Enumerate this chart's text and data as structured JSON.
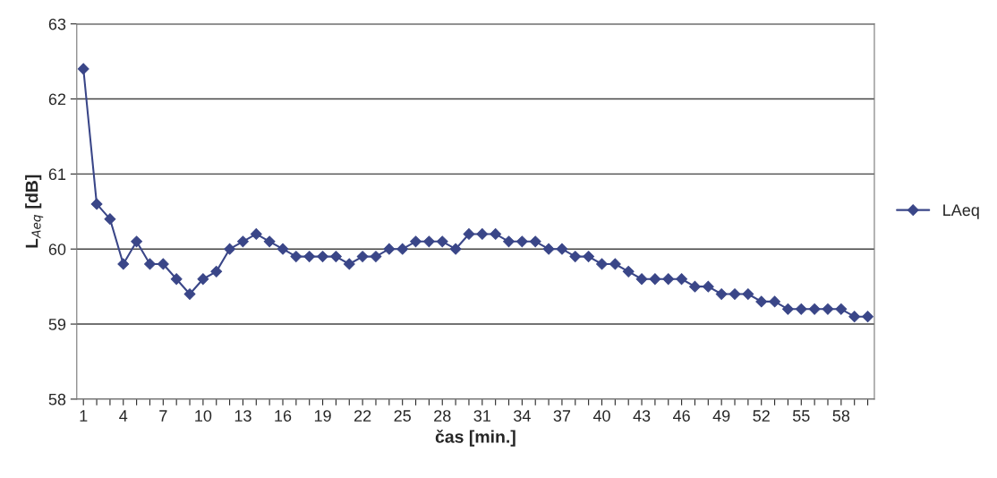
{
  "chart_data": {
    "type": "line",
    "xlabel": "čas [min.]",
    "ylabel": "L$_{Aeq}$ [dB]",
    "categories": [
      "1",
      null,
      null,
      "4",
      null,
      null,
      "7",
      null,
      null,
      "10",
      null,
      null,
      "13",
      null,
      null,
      "16",
      null,
      null,
      "19",
      null,
      null,
      "22",
      null,
      null,
      "25",
      null,
      null,
      "28",
      null,
      null,
      "31",
      null,
      null,
      "34",
      null,
      null,
      "37",
      null,
      null,
      "40",
      null,
      null,
      "43",
      null,
      null,
      "46",
      null,
      null,
      "49",
      null,
      null,
      "52",
      null,
      null,
      "55",
      null,
      null,
      "58",
      null,
      null
    ],
    "series": [
      {
        "name": "LAeq",
        "color": "#3a4688",
        "values": [
          62.4,
          60.6,
          60.4,
          59.8,
          60.1,
          59.8,
          59.8,
          59.6,
          59.4,
          59.6,
          59.7,
          60.0,
          60.1,
          60.2,
          60.1,
          60.0,
          59.9,
          59.9,
          59.9,
          59.9,
          59.8,
          59.9,
          59.9,
          60.0,
          60.0,
          60.1,
          60.1,
          60.1,
          60.0,
          60.2,
          60.2,
          60.2,
          60.1,
          60.1,
          60.1,
          60.0,
          60.0,
          59.9,
          59.9,
          59.8,
          59.8,
          59.7,
          59.6,
          59.6,
          59.6,
          59.6,
          59.5,
          59.5,
          59.4,
          59.4,
          59.4,
          59.3,
          59.3,
          59.2,
          59.2,
          59.2,
          59.2,
          59.2,
          59.1,
          59.1
        ]
      }
    ],
    "ylim": [
      58,
      63
    ],
    "yticks": [
      58,
      59,
      60,
      61,
      62,
      63
    ],
    "grid": "y",
    "legend": "right",
    "marker": "diamond",
    "line_style": "solid"
  }
}
